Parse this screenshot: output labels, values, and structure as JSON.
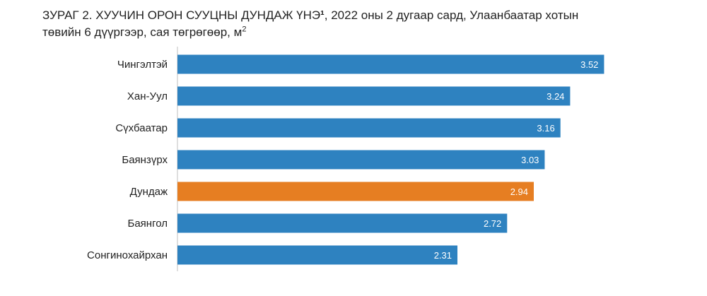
{
  "title": {
    "main": "ЗУРАГ 2. ХУУЧИН ОРОН СУУЦНЫ ДУНДАЖ ҮНЭ",
    "footnote_mark": "¹",
    "rest_line1": ", 2022 оны 2 дугаар сард, Улаанбаатар хотын",
    "line2": "төвийн 6 дүүргээр, сая төгрөгөөр, м",
    "unit_sup": "2"
  },
  "chart_data": {
    "type": "bar",
    "orientation": "horizontal",
    "categories": [
      "Чингэлтэй",
      "Хан-Уул",
      "Сүхбаатар",
      "Баянзүрх",
      "Дундаж",
      "Баянгол",
      "Сонгинохайрхан"
    ],
    "values": [
      3.52,
      3.24,
      3.16,
      3.03,
      2.94,
      2.72,
      2.31
    ],
    "value_labels": [
      "3.52",
      "3.24",
      "3.16",
      "3.03",
      "2.94",
      "2.72",
      "2.31"
    ],
    "highlight_category": "Дундаж",
    "xlim": [
      0,
      4.2
    ],
    "grid": false,
    "colors": {
      "bar": "#2e82c0",
      "highlight": "#e67e22",
      "axis": "#bfbfbf"
    }
  }
}
